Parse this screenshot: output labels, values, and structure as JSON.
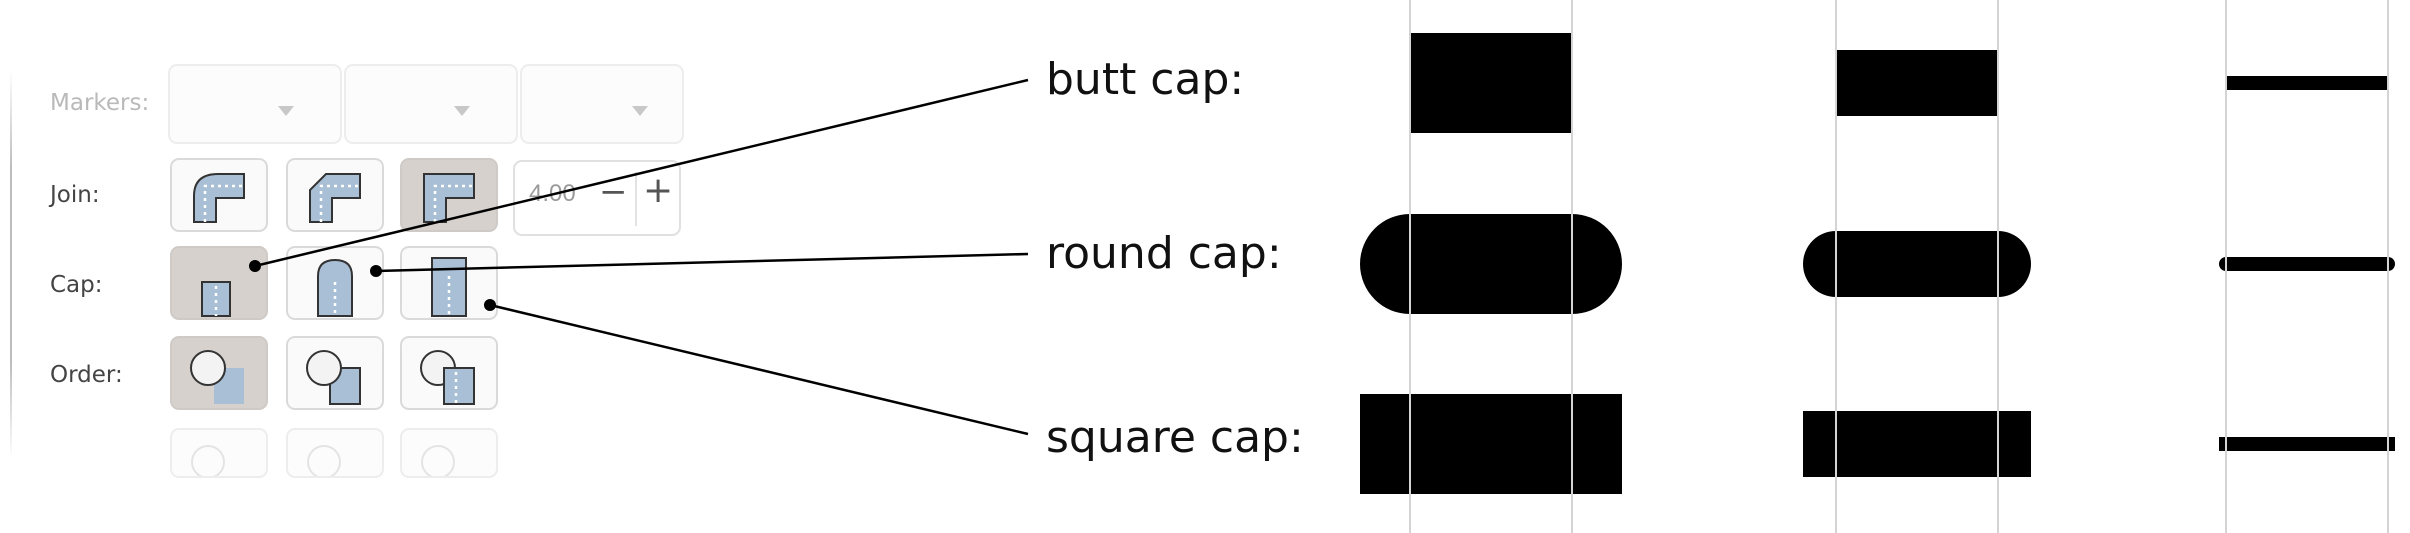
{
  "panel": {
    "rows": [
      {
        "id": "markers",
        "label": "Markers:",
        "faded": true
      },
      {
        "id": "join",
        "label": "Join:",
        "faded": false
      },
      {
        "id": "cap",
        "label": "Cap:",
        "faded": false
      },
      {
        "id": "order",
        "label": "Order:",
        "faded": false
      }
    ],
    "join": {
      "options": [
        "round-join-icon",
        "bevel-join-icon",
        "miter-join-icon"
      ],
      "selected_index": 2,
      "miter_limit": "4.00",
      "decrement_label": "−",
      "increment_label": "+"
    },
    "cap": {
      "options": [
        "butt-cap-icon",
        "round-cap-icon",
        "square-cap-icon"
      ],
      "selected_index": 0
    },
    "order": {
      "options": [
        "markers-stroke-fill-icon",
        "stroke-markers-fill-icon",
        "fill-stroke-markers-icon"
      ],
      "selected_index": 0
    }
  },
  "callouts": {
    "butt": "butt cap:",
    "round": "round cap:",
    "square": "square cap:"
  },
  "demo": {
    "caps": [
      "butt",
      "round",
      "square"
    ],
    "stroke_weights": [
      "thick",
      "medium",
      "thin"
    ],
    "stroke_color": "#000000",
    "guide_color": "#d4d4d4"
  },
  "colors": {
    "button_active": "#d6d1cd",
    "icon_fill": "#a9bfd6",
    "label_text": "#444444"
  }
}
